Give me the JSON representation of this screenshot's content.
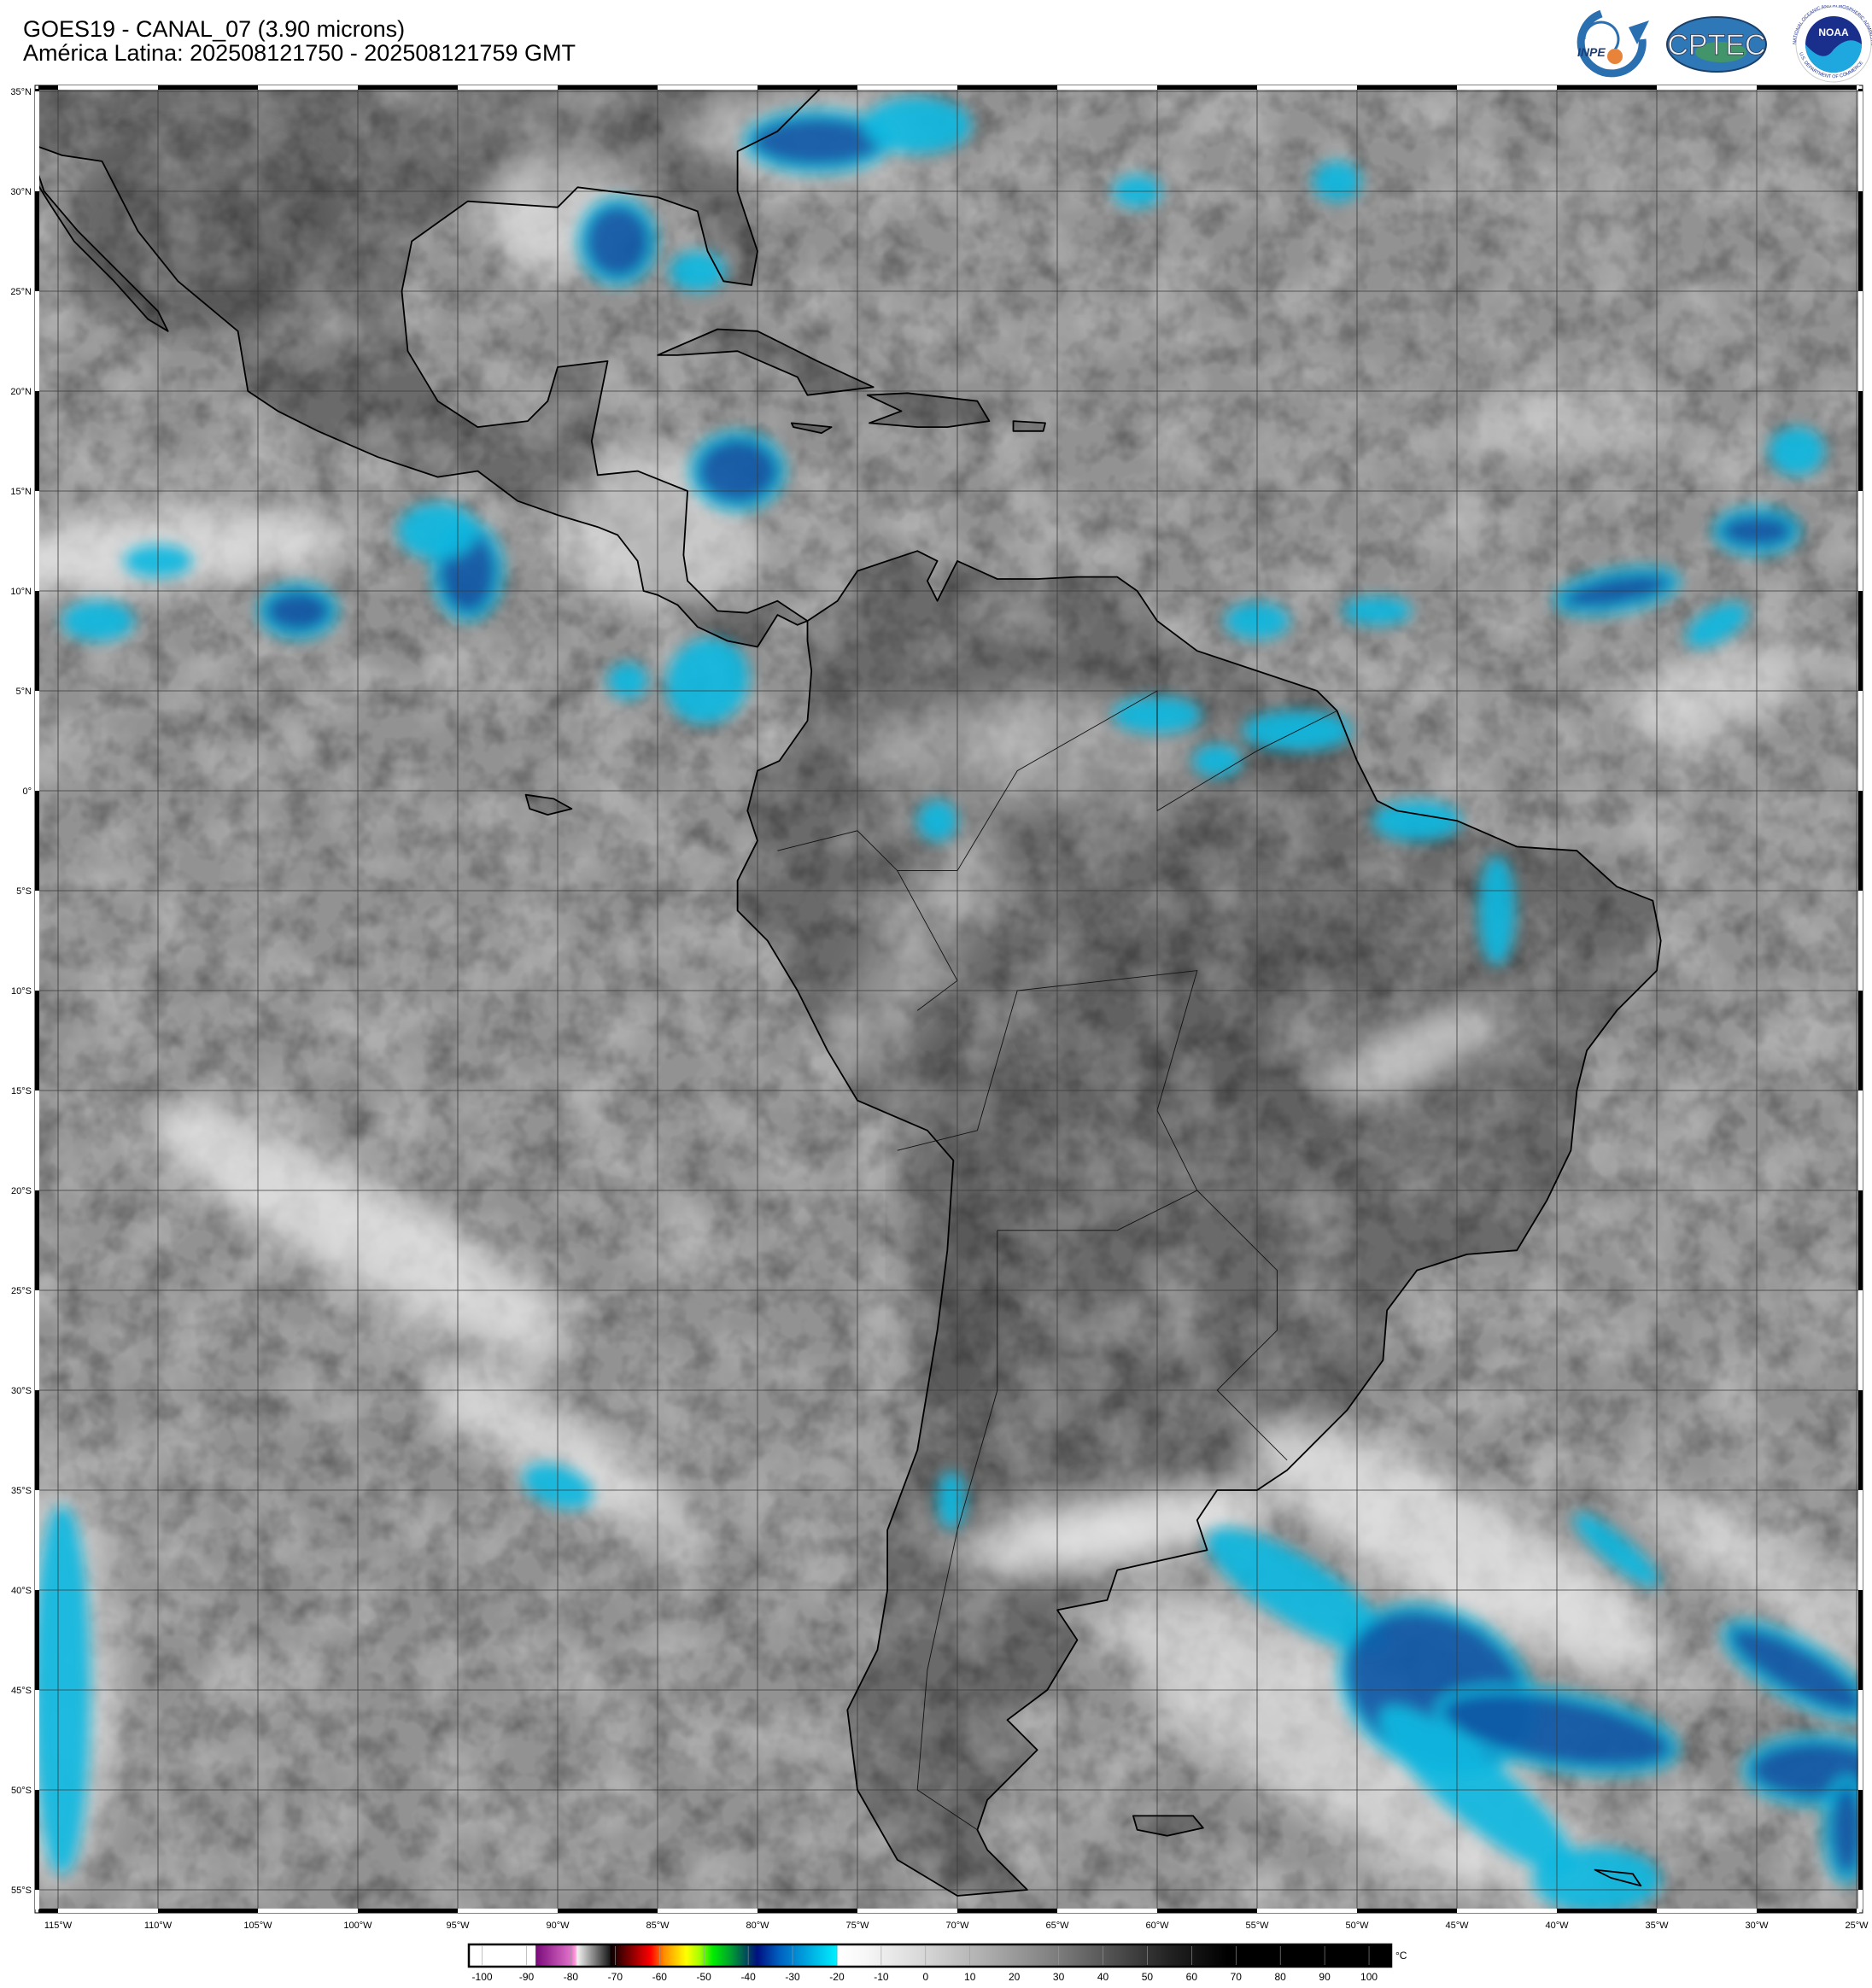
{
  "header": {
    "title": "GOES19 - CANAL_07 (3.90 microns)",
    "subtitle": "América Latina: 202508121750 - 202508121759 GMT"
  },
  "logos": {
    "inpe": "INPE",
    "cptec": "CPTEC",
    "noaa": "NOAA",
    "noaa_ring_top": "NATIONAL OCEANIC AND ATMOSPHERIC ADMINISTRATION",
    "noaa_ring_bottom": "U.S. DEPARTMENT OF COMMERCE"
  },
  "map": {
    "lat_labels": [
      "35°N",
      "30°N",
      "25°N",
      "20°N",
      "15°N",
      "10°N",
      "5°N",
      "0°",
      "5°S",
      "10°S",
      "15°S",
      "20°S",
      "25°S",
      "30°S",
      "35°S",
      "40°S",
      "45°S",
      "50°S",
      "55°S"
    ],
    "lon_labels": [
      "115°W",
      "110°W",
      "105°W",
      "100°W",
      "95°W",
      "90°W",
      "85°W",
      "80°W",
      "75°W",
      "70°W",
      "65°W",
      "60°W",
      "55°W",
      "50°W",
      "45°W",
      "40°W",
      "35°W",
      "30°W",
      "25°W"
    ],
    "colors": {
      "ocean": "#929292",
      "land": "#6a6a6a",
      "cold_cloud": "#12b8e0",
      "very_cold_cloud": "#0a5aa8",
      "coastline": "#000000",
      "grid": "#3a3a3a"
    }
  },
  "colorbar": {
    "ticks": [
      "-100",
      "-90",
      "-80",
      "-70",
      "-60",
      "-50",
      "-40",
      "-30",
      "-20",
      "-10",
      "0",
      "10",
      "20",
      "30",
      "40",
      "50",
      "60",
      "70",
      "80",
      "90",
      "100"
    ],
    "unit": "°C",
    "range": [
      -103,
      105
    ],
    "stops": [
      [
        -103,
        "#ffffff"
      ],
      [
        -88,
        "#ffffff"
      ],
      [
        -87.9,
        "#7a0a7a"
      ],
      [
        -80,
        "#e070c8"
      ],
      [
        -79,
        "#ff9ad8"
      ],
      [
        -78.5,
        "#f0f0f0"
      ],
      [
        -71.2,
        "#1a1a1a"
      ],
      [
        -71,
        "#0a0000"
      ],
      [
        -62,
        "#ff0000"
      ],
      [
        -59,
        "#ff8c00"
      ],
      [
        -54,
        "#ffff00"
      ],
      [
        -51,
        "#a8ff00"
      ],
      [
        -48,
        "#00ee00"
      ],
      [
        -44,
        "#00a030"
      ],
      [
        -40,
        "#004060"
      ],
      [
        -38,
        "#001080"
      ],
      [
        -33,
        "#0060c0"
      ],
      [
        -20,
        "#00f0ff"
      ],
      [
        -19.8,
        "#ffffff"
      ],
      [
        -14,
        "#f8f8f8"
      ],
      [
        0,
        "#d6d6d6"
      ],
      [
        30,
        "#7c7c7c"
      ],
      [
        55,
        "#222222"
      ],
      [
        68,
        "#000000"
      ],
      [
        105,
        "#000000"
      ]
    ]
  }
}
